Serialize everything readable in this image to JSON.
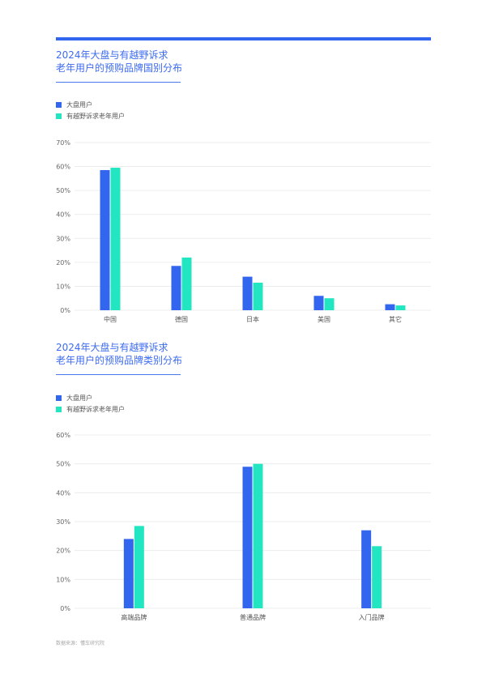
{
  "colors": {
    "series1": "#3366ee",
    "series2": "#22e5c2",
    "grid": "#e8e8e8",
    "accent": "#3366ee"
  },
  "chart_data": [
    {
      "type": "bar",
      "title_line1": "2024年大盘与有越野诉求",
      "title_line2": "老年用户的预购品牌国别分布",
      "categories": [
        "中国",
        "德国",
        "日本",
        "美国",
        "其它"
      ],
      "series": [
        {
          "name": "大盘用户",
          "values": [
            58.5,
            18.5,
            14,
            6,
            2.5
          ]
        },
        {
          "name": "有越野诉求老年用户",
          "values": [
            59.5,
            22,
            11.5,
            5,
            2
          ]
        }
      ],
      "yticks": [
        "0%",
        "10%",
        "20%",
        "30%",
        "40%",
        "50%",
        "60%",
        "70%"
      ],
      "ylim": [
        0,
        70
      ],
      "legend": "top-left",
      "grid": true
    },
    {
      "type": "bar",
      "title_line1": "2024年大盘与有越野诉求",
      "title_line2": "老年用户的预购品牌类别分布",
      "categories": [
        "高端品牌",
        "普通品牌",
        "入门品牌"
      ],
      "series": [
        {
          "name": "大盘用户",
          "values": [
            24,
            49,
            27
          ]
        },
        {
          "name": "有越野诉求老年用户",
          "values": [
            28.5,
            50,
            21.5
          ]
        }
      ],
      "yticks": [
        "0%",
        "10%",
        "20%",
        "30%",
        "40%",
        "50%",
        "60%"
      ],
      "ylim": [
        0,
        60
      ],
      "legend": "top-left",
      "grid": true
    }
  ],
  "source": "数据来源：懂车研究院"
}
